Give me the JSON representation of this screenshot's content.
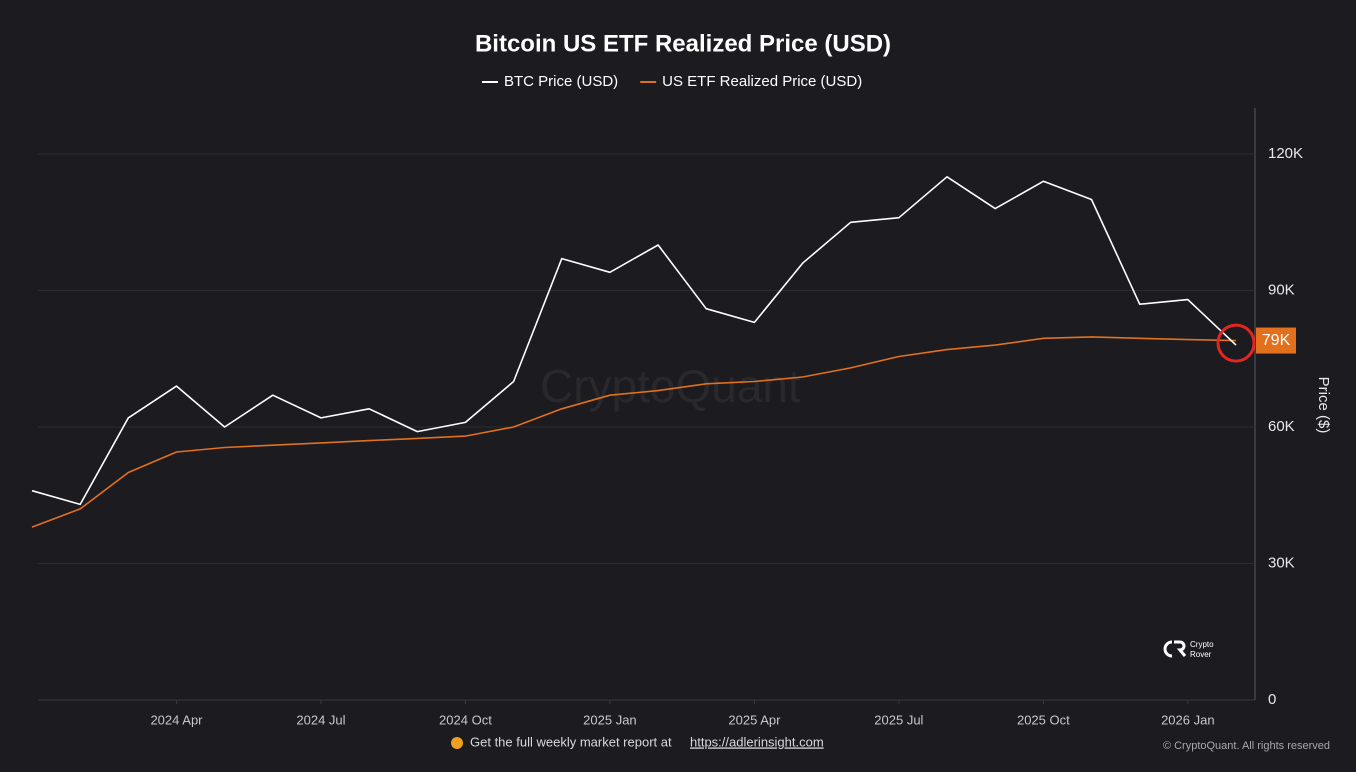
{
  "chart_data": {
    "type": "line",
    "title": "Bitcoin US ETF Realized Price (USD)",
    "y_label": "Price ($)",
    "x": [
      "2024-01",
      "2024-02",
      "2024-03",
      "2024-04",
      "2024-05",
      "2024-06",
      "2024-07",
      "2024-08",
      "2024-09",
      "2024-10",
      "2024-11",
      "2024-12",
      "2025-01",
      "2025-02",
      "2025-03",
      "2025-04",
      "2025-05",
      "2025-06",
      "2025-07",
      "2025-08",
      "2025-09",
      "2025-10",
      "2025-11",
      "2025-12",
      "2026-01",
      "2026-02"
    ],
    "series": [
      {
        "name": "BTC Price (USD)",
        "color": "#ffffff",
        "values": [
          46000,
          43000,
          62000,
          69000,
          60000,
          67000,
          62000,
          64000,
          59000,
          61000,
          70000,
          97000,
          94000,
          100000,
          86000,
          83000,
          96000,
          105000,
          106000,
          115000,
          108000,
          114000,
          110000,
          87000,
          88000,
          78000
        ]
      },
      {
        "name": "US ETF Realized Price (USD)",
        "color": "#e2701c",
        "values": [
          38000,
          42000,
          50000,
          54500,
          55500,
          56000,
          56500,
          57000,
          57500,
          58000,
          60000,
          64000,
          67000,
          68000,
          69500,
          70000,
          71000,
          73000,
          75500,
          77000,
          78000,
          79500,
          79800,
          79500,
          79200,
          79000
        ]
      }
    ],
    "xlim": [
      "2024-01",
      "2026-02"
    ],
    "xticks": [
      {
        "value": "2024-04",
        "label": "2024 Apr"
      },
      {
        "value": "2024-07",
        "label": "2024 Jul"
      },
      {
        "value": "2024-10",
        "label": "2024 Oct"
      },
      {
        "value": "2025-01",
        "label": "2025 Jan"
      },
      {
        "value": "2025-04",
        "label": "2025 Apr"
      },
      {
        "value": "2025-07",
        "label": "2025 Jul"
      },
      {
        "value": "2025-10",
        "label": "2025 Oct"
      },
      {
        "value": "2026-01",
        "label": "2026 Jan"
      }
    ],
    "ylim": [
      0,
      130000
    ],
    "yticks": [
      0,
      {
        "value": 30000,
        "label": "30K"
      },
      {
        "value": 60000,
        "label": "60K"
      },
      {
        "value": 90000,
        "label": "90K"
      },
      {
        "value": 120000,
        "label": "120K"
      }
    ],
    "grid": true,
    "annotation": {
      "value": 79000,
      "label": "79K"
    },
    "watermark": "CryptoQuant",
    "logo": {
      "line1": "Crypto",
      "line2": "Rover"
    },
    "footer": {
      "text": "Get the full weekly market report at",
      "link": "https://adlerinsight.com"
    },
    "copyright": "© CryptoQuant. All rights reserved"
  }
}
